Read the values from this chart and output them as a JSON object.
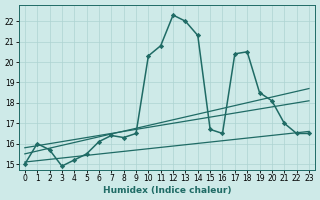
{
  "title": "",
  "xlabel": "Humidex (Indice chaleur)",
  "ylabel": "",
  "bg_color": "#ceeae8",
  "grid_color": "#aed4d2",
  "line_color": "#1f6b65",
  "xlim": [
    -0.5,
    23.5
  ],
  "ylim": [
    14.7,
    22.8
  ],
  "yticks": [
    15,
    16,
    17,
    18,
    19,
    20,
    21,
    22
  ],
  "xticks": [
    0,
    1,
    2,
    3,
    4,
    5,
    6,
    7,
    8,
    9,
    10,
    11,
    12,
    13,
    14,
    15,
    16,
    17,
    18,
    19,
    20,
    21,
    22,
    23
  ],
  "main_curve": {
    "x": [
      0,
      1,
      2,
      3,
      4,
      5,
      6,
      7,
      8,
      9,
      10,
      11,
      12,
      13,
      14,
      15,
      16,
      17,
      18,
      19,
      20,
      21,
      22,
      23
    ],
    "y": [
      15.0,
      16.0,
      15.7,
      14.9,
      15.2,
      15.5,
      16.1,
      16.4,
      16.3,
      16.5,
      20.3,
      20.8,
      22.3,
      22.0,
      21.3,
      16.7,
      16.5,
      20.4,
      20.5,
      18.5,
      18.1,
      17.0,
      16.5,
      16.5
    ],
    "marker": "D",
    "markersize": 2.2,
    "linewidth": 1.1
  },
  "linear_curves": [
    {
      "x": [
        0,
        23
      ],
      "y": [
        15.5,
        18.7
      ],
      "linewidth": 0.9
    },
    {
      "x": [
        0,
        23
      ],
      "y": [
        15.8,
        18.1
      ],
      "linewidth": 0.9
    },
    {
      "x": [
        0,
        23
      ],
      "y": [
        15.1,
        16.6
      ],
      "linewidth": 0.9
    }
  ]
}
